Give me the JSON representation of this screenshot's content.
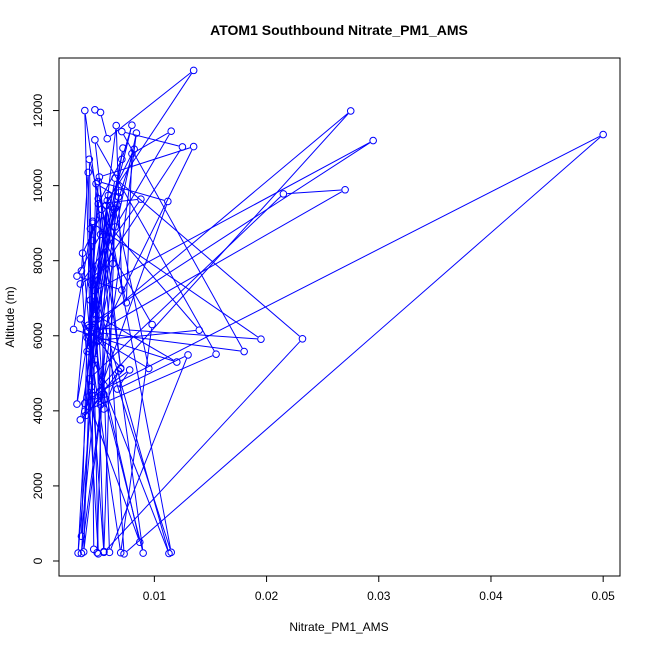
{
  "chart_data": {
    "type": "line",
    "title": "ATOM1 Southbound Nitrate_PM1_AMS",
    "xlabel": "Nitrate_PM1_AMS",
    "ylabel": "Altitude (m)",
    "xlim": [
      0.0015,
      0.0515
    ],
    "ylim": [
      -400,
      13400
    ],
    "x_ticks": [
      0.01,
      0.02,
      0.03,
      0.04,
      0.05
    ],
    "x_tick_labels": [
      "0.01",
      "0.02",
      "0.03",
      "0.04",
      "0.05"
    ],
    "y_ticks": [
      0,
      2000,
      4000,
      6000,
      8000,
      10000,
      12000
    ],
    "y_tick_labels": [
      "0",
      "2000",
      "4000",
      "6000",
      "8000",
      "10000",
      "12000"
    ],
    "grid": false,
    "marker": "open-circle",
    "color": "#0000FF",
    "series": [
      {
        "x": [
          0.0047,
          0.0052,
          0.0058,
          0.0135,
          0.0058,
          0.0049,
          0.0046,
          0.0043,
          0.0052,
          0.0065,
          0.0115,
          0.008,
          0.0075,
          0.0042,
          0.005,
          0.0035,
          0.0041,
          0.0045,
          0.0275,
          0.004,
          0.0095,
          0.0065,
          0.0055,
          0.0045,
          0.0028,
          0.012,
          0.0048,
          0.0043,
          0.0052,
          0.0098,
          0.007,
          0.0045,
          0.0036,
          0.0052,
          0.014,
          0.005,
          0.0045,
          0.0055,
          0.0068,
          0.009,
          0.0047,
          0.0063,
          0.0034,
          0.0088,
          0.005,
          0.0071,
          0.008,
          0.0062,
          0.0042,
          0.0215,
          0.027,
          0.004,
          0.0035,
          0.0047,
          0.0038,
          0.0078,
          0.0067,
          0.013,
          0.006,
          0.005,
          0.004,
          0.0059,
          0.0039,
          0.007,
          0.0047,
          0.0155,
          0.0038,
          0.0044,
          0.0038,
          0.007,
          0.0034,
          0.0053,
          0.0113,
          0.0047,
          0.0295,
          0.0041,
          0.0069,
          0.0042,
          0.0072,
          0.0034,
          0.0055,
          0.0045,
          0.0195,
          0.0045,
          0.0031,
          0.0065,
          0.0232,
          0.0055,
          0.0042,
          0.0066,
          0.0071,
          0.0031,
          0.0067,
          0.0053,
          0.0035,
          0.0084,
          0.0048,
          0.0115,
          0.0057,
          0.0082,
          0.0044,
          0.0125,
          0.0071,
          0.018,
          0.0049,
          0.0032,
          0.005,
          0.0112,
          0.0051,
          0.05,
          0.0073,
          0.0051,
          0.0135,
          0.005,
          0.0068,
          0.0048,
          0.0037,
          0.0055,
          0.0087,
          0.004,
          0.0064
        ],
        "y": [
          12020,
          11950,
          11250,
          13070,
          9600,
          220,
          310,
          8850,
          4160,
          8900,
          11450,
          10850,
          6880,
          10700,
          190,
          7730,
          10350,
          4400,
          11990,
          6100,
          5130,
          9400,
          250,
          9050,
          6170,
          5300,
          6550,
          6950,
          8700,
          6300,
          220,
          5250,
          8200,
          9200,
          6150,
          5880,
          8540,
          4050,
          5060,
          210,
          5370,
          7920,
          7380,
          9640,
          9520,
          10700,
          11610,
          9430,
          4850,
          9780,
          9890,
          5950,
          660,
          4400,
          4200,
          5090,
          4580,
          5490,
          230,
          9650,
          5580,
          9740,
          3880,
          5120,
          11220,
          5510,
          3990,
          4640,
          12000,
          5140,
          6450,
          4780,
          200,
          7200,
          11200,
          6280,
          9820,
          6220,
          11000,
          3760,
          4440,
          6220,
          5910,
          9000,
          4180,
          10200,
          5920,
          230,
          5660,
          11600,
          7220,
          7590,
          9480,
          9370,
          200,
          11400,
          6440,
          230,
          9470,
          10970,
          7360,
          11030,
          11440,
          5580,
          6090,
          210,
          10110,
          9580,
          4510,
          11360,
          190,
          10230,
          11040,
          5860,
          9700,
          10050,
          240,
          4680,
          500,
          4360,
          9360
        ]
      }
    ]
  }
}
